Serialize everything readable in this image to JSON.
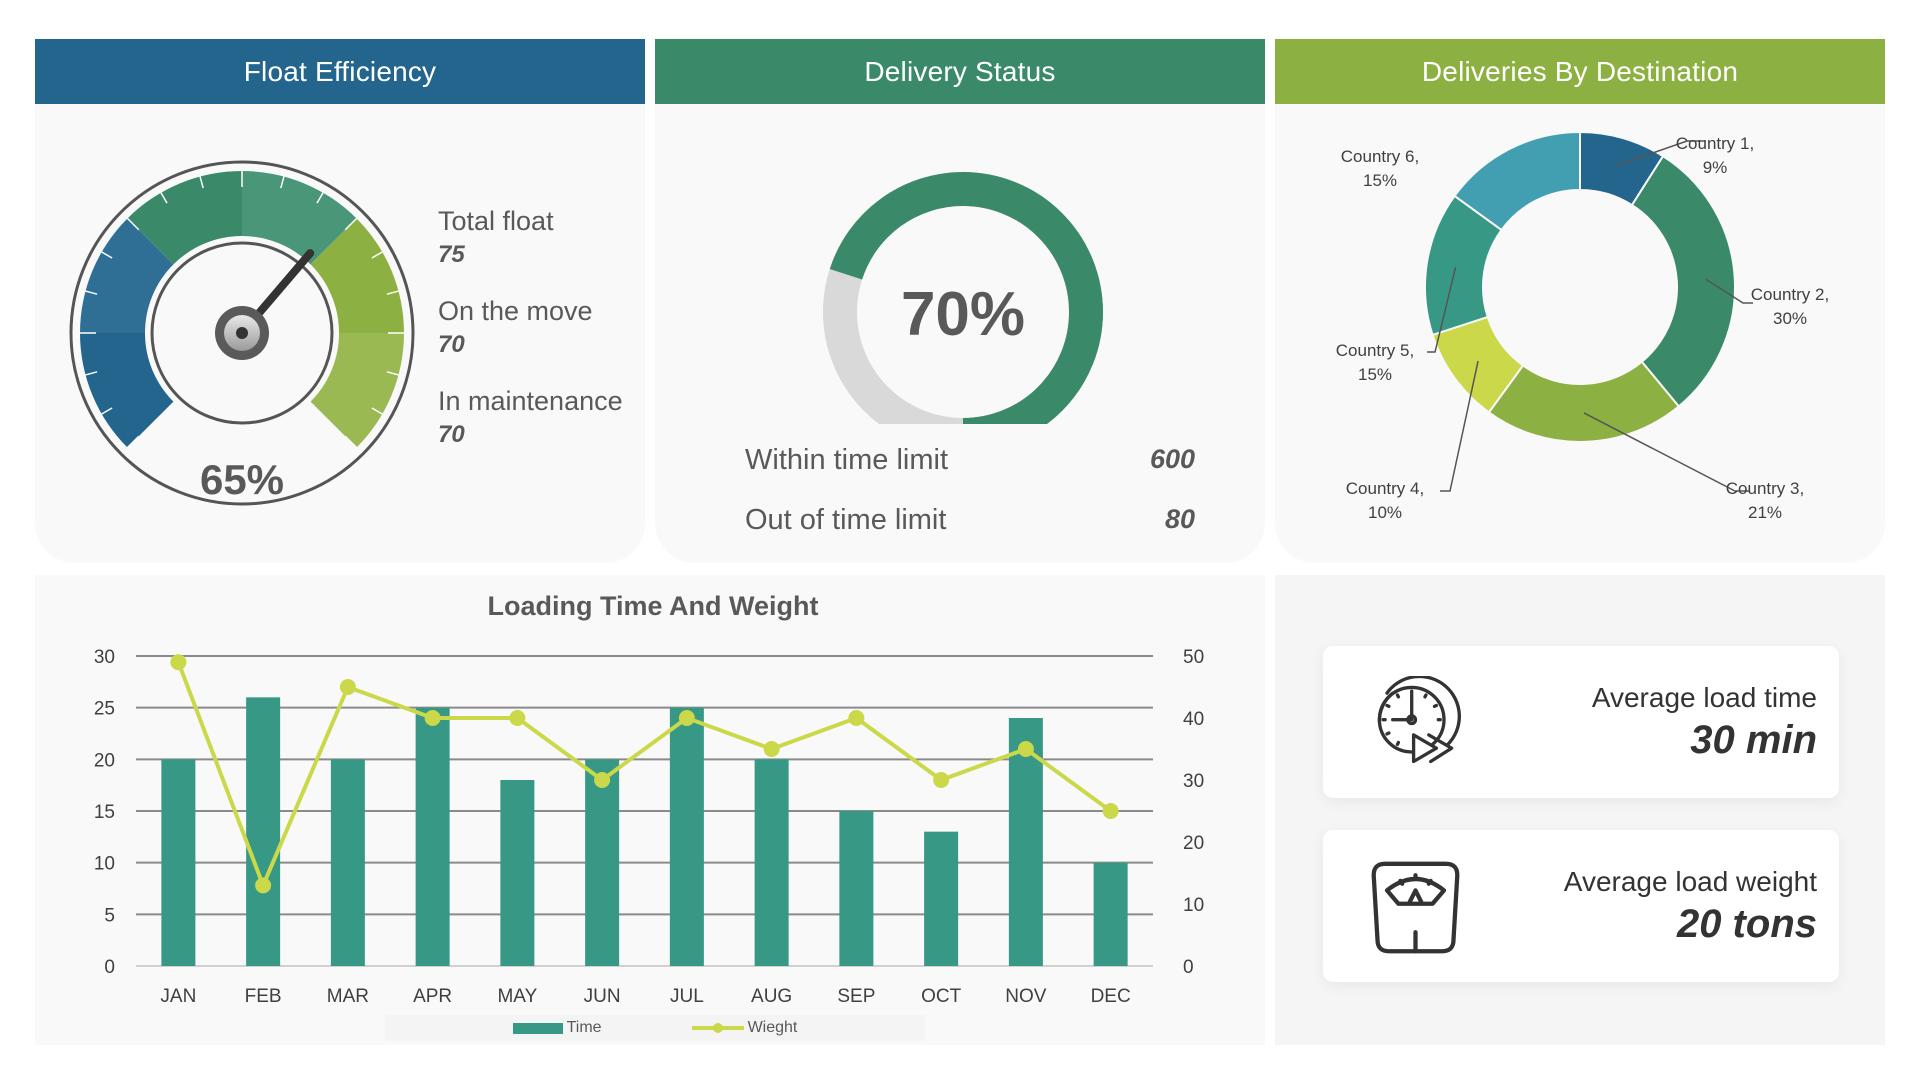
{
  "float_efficiency": {
    "title": "Float Efficiency",
    "gauge_value_label": "65%",
    "gauge_value": 0.65,
    "stats": [
      {
        "label": "Total float",
        "value": "75"
      },
      {
        "label": "On the move",
        "value": "70"
      },
      {
        "label": "In maintenance",
        "value": "70"
      }
    ],
    "colors": [
      "#23658c",
      "#2f6f96",
      "#3a8a69",
      "#4a9678",
      "#8db042",
      "#9bb952"
    ]
  },
  "delivery_status": {
    "title": "Delivery Status",
    "percent_label": "70%",
    "percent": 70,
    "rows": [
      {
        "label": "Within time limit",
        "value": "600"
      },
      {
        "label": "Out of time limit",
        "value": "80"
      }
    ],
    "colors": {
      "filled": "#3a8a69",
      "remaining": "#d9d9d9"
    }
  },
  "deliveries_by_destination": {
    "title": "Deliveries By Destination",
    "slices": [
      {
        "name": "Country 1,",
        "pct_label": "9%",
        "value": 9,
        "color": "#23658c"
      },
      {
        "name": "Country 2,",
        "pct_label": "30%",
        "value": 30,
        "color": "#3a8a69"
      },
      {
        "name": "Country 3,",
        "pct_label": "21%",
        "value": 21,
        "color": "#8db042"
      },
      {
        "name": "Country 4,",
        "pct_label": "10%",
        "value": 10,
        "color": "#cbd84a"
      },
      {
        "name": "Country 5,",
        "pct_label": "15%",
        "value": 15,
        "color": "#379985"
      },
      {
        "name": "Country 6,",
        "pct_label": "15%",
        "value": 15,
        "color": "#429eb1"
      }
    ]
  },
  "kpis": [
    {
      "icon": "clock-play-icon",
      "label": "Average load time",
      "value": "30 min"
    },
    {
      "icon": "scale-icon",
      "label": "Average load weight",
      "value": "20 tons"
    }
  ],
  "chart_data": {
    "type": "bar",
    "title": "Loading Time And Weight",
    "categories": [
      "JAN",
      "FEB",
      "MAR",
      "APR",
      "MAY",
      "JUN",
      "JUL",
      "AUG",
      "SEP",
      "OCT",
      "NOV",
      "DEC"
    ],
    "series": [
      {
        "name": "Time",
        "type": "bar",
        "axis": "left",
        "color": "#379985",
        "values": [
          20,
          26,
          20,
          25,
          18,
          20,
          25,
          20,
          15,
          13,
          24,
          10
        ]
      },
      {
        "name": "Wieght",
        "type": "line",
        "axis": "right",
        "color": "#cbd84a",
        "values": [
          49,
          13,
          45,
          40,
          40,
          30,
          40,
          35,
          40,
          30,
          35,
          25
        ]
      }
    ],
    "y_left": {
      "range": [
        0,
        30
      ],
      "ticks": [
        "30",
        "25",
        "20",
        "15",
        "10",
        "5",
        "0"
      ]
    },
    "y_right": {
      "range": [
        0,
        50
      ],
      "ticks": [
        "50",
        "40",
        "30",
        "20",
        "10",
        "0"
      ]
    },
    "grid": true,
    "legend": "bottom"
  }
}
